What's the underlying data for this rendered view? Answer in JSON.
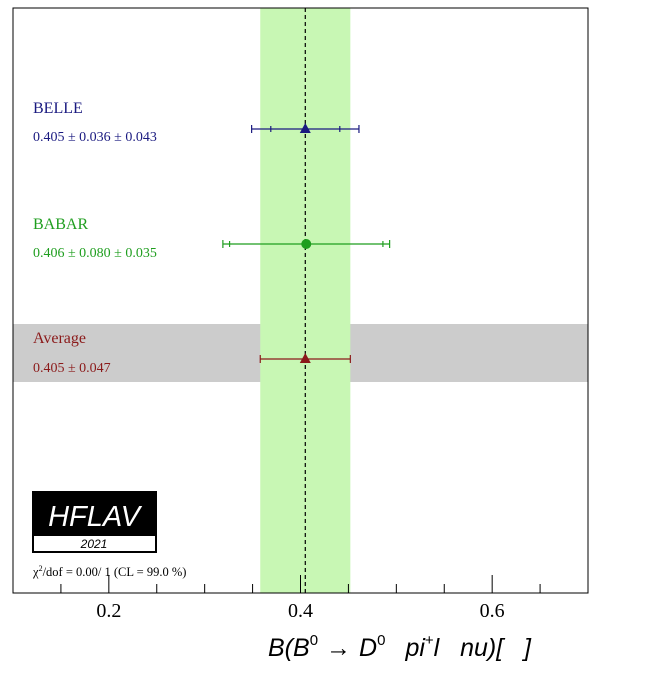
{
  "chart_data": {
    "type": "scatter",
    "title": "",
    "xlabel": {
      "base": "B(B",
      "sup1": "0",
      "arrow": "→",
      "d": "D",
      "sup2": "0",
      "pi": "pi",
      "sup3": "+",
      "rest": "l   nu)[   ]"
    },
    "xlim": [
      0.1,
      0.7
    ],
    "x_ticks": [
      0.2,
      0.4,
      0.6
    ],
    "x_tick_labels": [
      "0.2",
      "0.4",
      "0.6"
    ],
    "x_minor_step": 0.05,
    "average_band": [
      0.358,
      0.452
    ],
    "average_value": 0.405,
    "measurements": [
      {
        "name": "BELLE",
        "result_text": "0.405 ± 0.036 ± 0.043",
        "value": 0.405,
        "stat": 0.036,
        "total": 0.056,
        "marker": "triangle",
        "color": "#1a1a80"
      },
      {
        "name": "BABAR",
        "result_text": "0.406 ± 0.080 ± 0.035",
        "value": 0.406,
        "stat": 0.08,
        "total": 0.087,
        "marker": "circle",
        "color": "#1f9e1f"
      },
      {
        "name": "Average",
        "result_text": "0.405 ± 0.047",
        "value": 0.405,
        "stat": 0.047,
        "total": 0.047,
        "marker": "triangle",
        "color": "#8b1a1a"
      }
    ],
    "logo": {
      "text": "HFLAV",
      "year": "2021"
    },
    "chi2_text": {
      "chi": "χ",
      "sup": "2",
      "rest": "/dof = 0.00/ 1 (CL = 99.0 %)"
    },
    "colors": {
      "band": "#c8f7b4",
      "average_row": "#cccccc"
    }
  }
}
